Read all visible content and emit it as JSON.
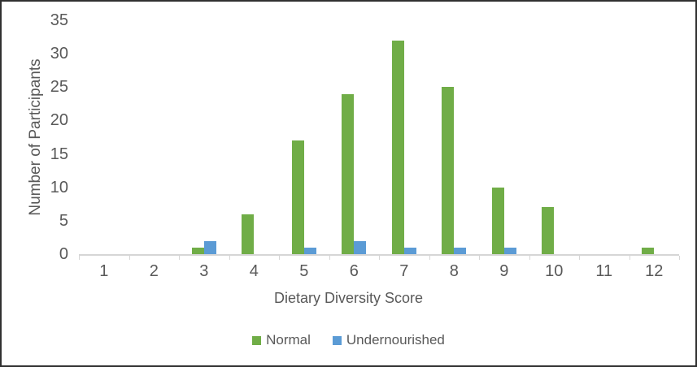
{
  "chart_data": {
    "type": "bar",
    "title": "",
    "xlabel": "Dietary Diversity Score",
    "ylabel": "Number of Participants",
    "categories": [
      "1",
      "2",
      "3",
      "4",
      "5",
      "6",
      "7",
      "8",
      "9",
      "10",
      "11",
      "12"
    ],
    "series": [
      {
        "name": "Normal",
        "color": "#70AD47",
        "values": [
          0,
          0,
          1,
          6,
          17,
          24,
          32,
          25,
          10,
          7,
          0,
          1
        ]
      },
      {
        "name": "Undernourished",
        "color": "#5B9BD5",
        "values": [
          0,
          0,
          2,
          0,
          1,
          2,
          1,
          1,
          1,
          0,
          0,
          0
        ]
      }
    ],
    "ylim": [
      0,
      35
    ],
    "yticks": [
      0,
      5,
      10,
      15,
      20,
      25,
      30,
      35
    ],
    "grid": false,
    "legend_position": "bottom"
  },
  "style": {
    "text_color": "#595959",
    "axis_line_color": "#D6D6D6",
    "border_color": "#303030",
    "background": "#FFFFFF"
  }
}
